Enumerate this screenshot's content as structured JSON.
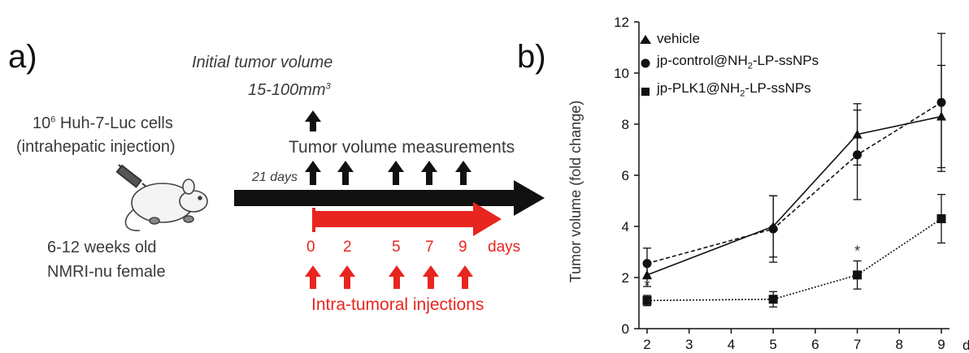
{
  "panel_a": {
    "label": "a)",
    "initial_tumor_volume_title": "Initial tumor volume",
    "initial_tumor_volume_value": "15-100mm",
    "initial_tumor_volume_sup": "3",
    "cells_base": "10",
    "cells_exp": "6",
    "cells_text": " Huh-7-Luc cells",
    "injection_text": "(intrahepatic injection)",
    "measurements_label": "Tumor volume measurements",
    "days_marker": "21 days",
    "mouse_age": "6-12 weeks old",
    "mouse_strain": "NMRI-nu female",
    "day_ticks": [
      "0",
      "2",
      "5",
      "7",
      "9"
    ],
    "days_label": "days",
    "injections_label": "Intra-tumoral injections",
    "colors": {
      "timeline": "#111111",
      "injection": "#e8251f"
    }
  },
  "panel_b": {
    "label": "b)"
  },
  "chart_data": {
    "type": "line",
    "ylabel": "Tumor volume (fold change)",
    "xlabel": "days",
    "x": [
      2,
      5,
      7,
      9
    ],
    "xticks": [
      "2",
      "3",
      "4",
      "5",
      "6",
      "7",
      "8",
      "9"
    ],
    "yticks": [
      "0",
      "2",
      "4",
      "6",
      "8",
      "10",
      "12"
    ],
    "xlim": [
      2,
      9
    ],
    "ylim": [
      0,
      12
    ],
    "series": [
      {
        "name": "vehicle",
        "marker": "triangle",
        "line": "solid",
        "values": [
          2.1,
          4.0,
          7.6,
          8.3
        ],
        "err": [
          0.45,
          1.2,
          1.2,
          2.0
        ]
      },
      {
        "name_prefix": "jp-control@NH",
        "name_sub": "2",
        "name_suffix": "-LP-ssNPs",
        "marker": "circle",
        "line": "dashed",
        "values": [
          2.55,
          3.9,
          6.8,
          8.85
        ],
        "err": [
          0.6,
          1.3,
          1.75,
          2.7
        ]
      },
      {
        "name_prefix": "jp-PLK1@NH",
        "name_sub": "2",
        "name_suffix": "-LP-ssNPs",
        "marker": "square",
        "line": "dotted",
        "values": [
          1.1,
          1.15,
          2.1,
          4.3
        ],
        "err": [
          0.2,
          0.3,
          0.55,
          0.95
        ]
      }
    ],
    "annotations": [
      {
        "text": "*",
        "x": 2
      },
      {
        "text": "*",
        "x": 7
      }
    ],
    "colors": {
      "ink": "#111111"
    }
  }
}
